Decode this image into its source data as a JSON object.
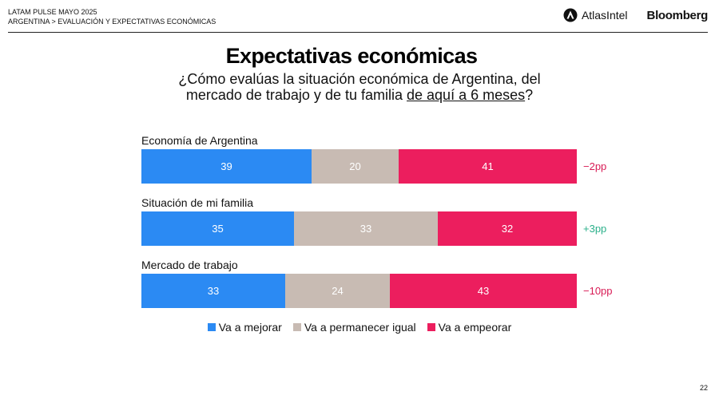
{
  "header": {
    "line1": "LATAM PULSE MAYO 2025",
    "line2": "ARGENTINA > EVALUACIÓN Y EXPECTATIVAS ECONÓMICAS"
  },
  "logos": {
    "atlas": "AtlasIntel",
    "bloomberg": "Bloomberg"
  },
  "page_number": "22",
  "colors": {
    "mejorar": "#2b8af3",
    "igual": "#c8bbb3",
    "empeorar": "#ec1e5e",
    "neg_delta": "#d81b55",
    "pos_delta": "#2bb08a"
  },
  "chart_data": {
    "type": "bar",
    "orientation": "horizontal-stacked-100",
    "title": "Expectativas económicas",
    "subtitle_a": "¿Cómo evalúas la situación económica de Argentina, del",
    "subtitle_b": "mercado de trabajo y de tu familia",
    "subtitle_c": "de aquí a 6 meses",
    "subtitle_d": "?",
    "categories": [
      "Economía de Argentina",
      "Situación de mi familia",
      "Mercado de trabajo"
    ],
    "series": [
      {
        "name": "Va a mejorar",
        "values": [
          39,
          35,
          33
        ]
      },
      {
        "name": "Va a permanecer igual",
        "values": [
          20,
          33,
          24
        ]
      },
      {
        "name": "Va a empeorar",
        "values": [
          41,
          32,
          43
        ]
      }
    ],
    "deltas": [
      "−2pp",
      "+3pp",
      "−10pp"
    ],
    "delta_sign": [
      -1,
      1,
      -1
    ],
    "legend_position": "bottom"
  }
}
